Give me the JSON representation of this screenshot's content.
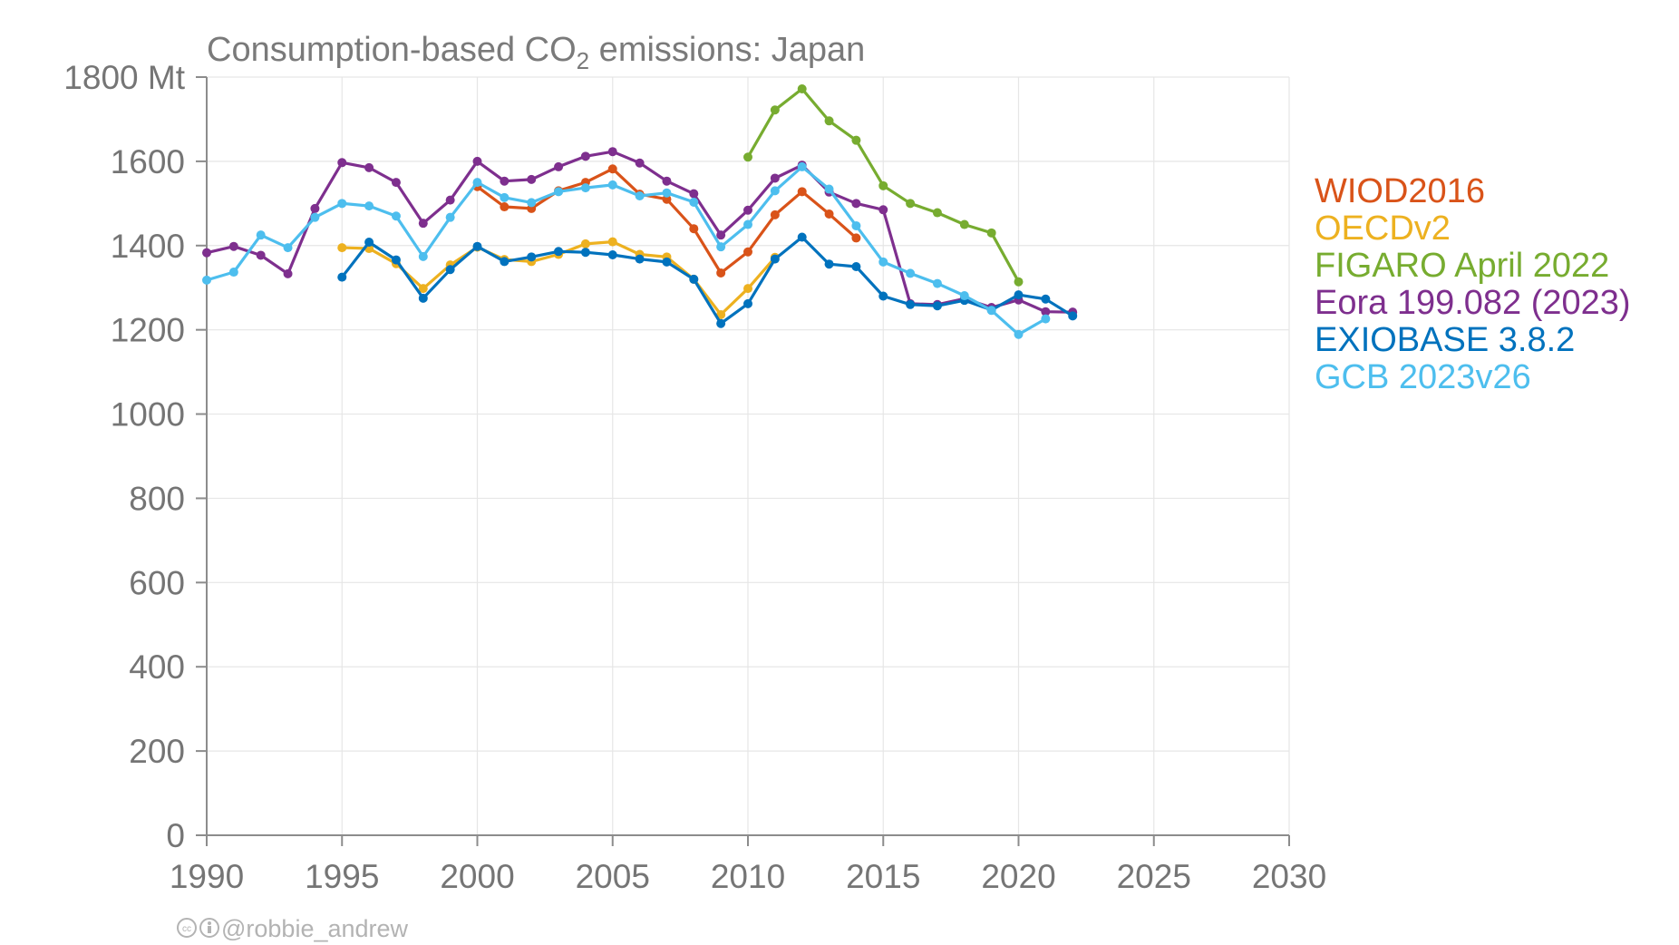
{
  "chart_data": {
    "type": "line",
    "title_prefix": "Consumption-based CO",
    "title_subscript": "2",
    "title_suffix": " emissions: Japan",
    "xlim": [
      1990,
      2030
    ],
    "ylim": [
      0,
      1800
    ],
    "x_ticks": [
      "1990",
      "1995",
      "2000",
      "2005",
      "2010",
      "2015",
      "2020",
      "2025",
      "2030"
    ],
    "y_ticks": [
      "0",
      "200",
      "400",
      "600",
      "800",
      "1000",
      "1200",
      "1400",
      "1600",
      "1800 Mt"
    ],
    "grid": true,
    "legend_position": "right",
    "credit": "@robbie_andrew",
    "series": [
      {
        "name": "WIOD2016",
        "color": "#d95319",
        "x": [
          2000,
          2001,
          2002,
          2003,
          2004,
          2005,
          2006,
          2007,
          2008,
          2009,
          2010,
          2011,
          2012,
          2013,
          2014
        ],
        "values": [
          1540,
          1492,
          1488,
          1530,
          1550,
          1582,
          1522,
          1510,
          1440,
          1335,
          1385,
          1473,
          1528,
          1475,
          1418
        ]
      },
      {
        "name": "OECDv2",
        "color": "#edb120",
        "x": [
          1995,
          1996,
          1997,
          1998,
          1999,
          2000,
          2001,
          2002,
          2003,
          2004,
          2005,
          2006,
          2007,
          2008,
          2009,
          2010,
          2011
        ],
        "values": [
          1395,
          1393,
          1357,
          1298,
          1354,
          1396,
          1367,
          1362,
          1379,
          1404,
          1409,
          1379,
          1373,
          1320,
          1236,
          1298,
          1372
        ]
      },
      {
        "name": "FIGARO April 2022",
        "color": "#77ac30",
        "x": [
          2010,
          2011,
          2012,
          2013,
          2014,
          2015,
          2016,
          2017,
          2018,
          2019,
          2020
        ],
        "values": [
          1610,
          1722,
          1772,
          1696,
          1650,
          1542,
          1500,
          1478,
          1450,
          1430,
          1314
        ]
      },
      {
        "name": "Eora 199.082 (2023)",
        "color": "#7e2f8e",
        "x": [
          1990,
          1991,
          1992,
          1993,
          1994,
          1995,
          1996,
          1997,
          1998,
          1999,
          2000,
          2001,
          2002,
          2003,
          2004,
          2005,
          2006,
          2007,
          2008,
          2009,
          2010,
          2011,
          2012,
          2013,
          2014,
          2015,
          2016,
          2017,
          2018,
          2019,
          2020,
          2021,
          2022
        ],
        "values": [
          1383,
          1398,
          1377,
          1333,
          1488,
          1597,
          1585,
          1550,
          1453,
          1508,
          1600,
          1553,
          1557,
          1587,
          1612,
          1623,
          1596,
          1553,
          1523,
          1425,
          1484,
          1560,
          1591,
          1527,
          1500,
          1485,
          1262,
          1260,
          1274,
          1253,
          1271,
          1243,
          1242
        ]
      },
      {
        "name": "EXIOBASE 3.8.2",
        "color": "#0072bd",
        "x": [
          1995,
          1996,
          1997,
          1998,
          1999,
          2000,
          2001,
          2002,
          2003,
          2004,
          2005,
          2006,
          2007,
          2008,
          2009,
          2010,
          2011,
          2012,
          2013,
          2014,
          2015,
          2016,
          2017,
          2018,
          2019,
          2020,
          2021,
          2022
        ],
        "values": [
          1325,
          1408,
          1366,
          1275,
          1343,
          1398,
          1362,
          1373,
          1386,
          1384,
          1378,
          1368,
          1361,
          1320,
          1215,
          1262,
          1368,
          1420,
          1356,
          1350,
          1280,
          1260,
          1257,
          1270,
          1247,
          1283,
          1273,
          1233
        ]
      },
      {
        "name": "GCB 2023v26",
        "color": "#4dbeee",
        "x": [
          1990,
          1991,
          1992,
          1993,
          1994,
          1995,
          1996,
          1997,
          1998,
          1999,
          2000,
          2001,
          2002,
          2003,
          2004,
          2005,
          2006,
          2007,
          2008,
          2009,
          2010,
          2011,
          2012,
          2013,
          2014,
          2015,
          2016,
          2017,
          2018,
          2019,
          2020,
          2021
        ],
        "values": [
          1318,
          1337,
          1425,
          1395,
          1467,
          1500,
          1494,
          1470,
          1374,
          1467,
          1550,
          1514,
          1502,
          1528,
          1537,
          1544,
          1518,
          1525,
          1503,
          1397,
          1450,
          1530,
          1587,
          1534,
          1447,
          1361,
          1334,
          1310,
          1281,
          1246,
          1189,
          1226
        ]
      }
    ]
  }
}
